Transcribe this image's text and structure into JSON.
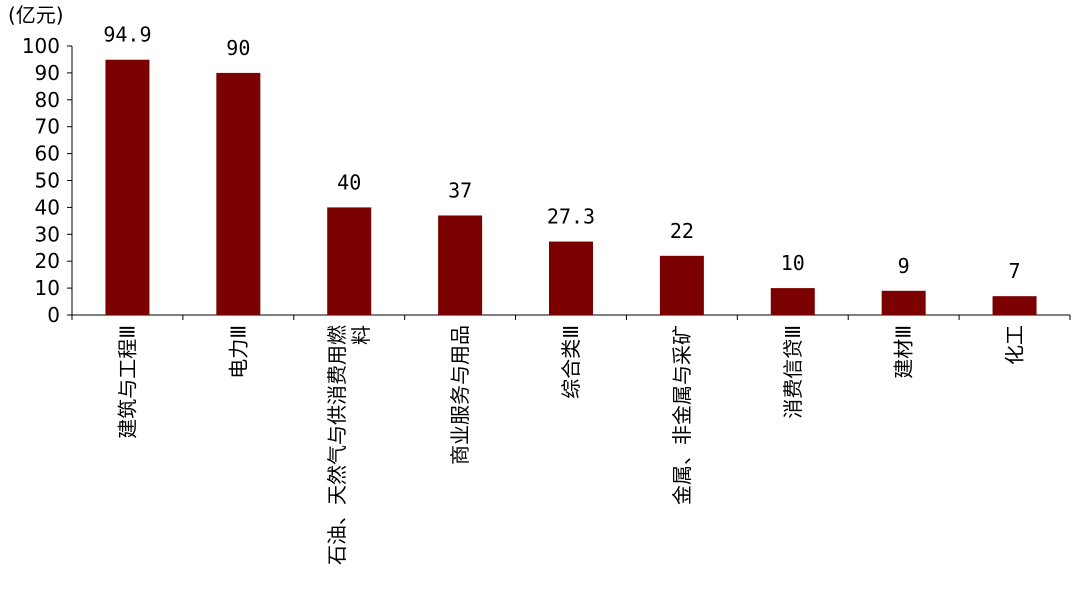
{
  "chart_data": {
    "type": "bar",
    "ylabel": "(亿元)",
    "ylim": [
      0,
      100
    ],
    "yticks": [
      0,
      10,
      20,
      30,
      40,
      50,
      60,
      70,
      80,
      90,
      100
    ],
    "grid": false,
    "legend": "none",
    "bar_color": "#7b0000",
    "categories": [
      [
        "建筑与工程Ⅲ"
      ],
      [
        "电力Ⅲ"
      ],
      [
        "石油、天然气与供消费用燃",
        "料"
      ],
      [
        "商业服务与用品"
      ],
      [
        "综合类Ⅲ"
      ],
      [
        "金属、非金属与采矿"
      ],
      [
        "消费信贷Ⅲ"
      ],
      [
        "建材Ⅲ"
      ],
      [
        "化工"
      ]
    ],
    "values": [
      94.9,
      90,
      40,
      37,
      27.3,
      22,
      10,
      9,
      7
    ],
    "data_labels": [
      "94.9",
      "90",
      "40",
      "37",
      "27.3",
      "22",
      "10",
      "9",
      "7"
    ]
  }
}
